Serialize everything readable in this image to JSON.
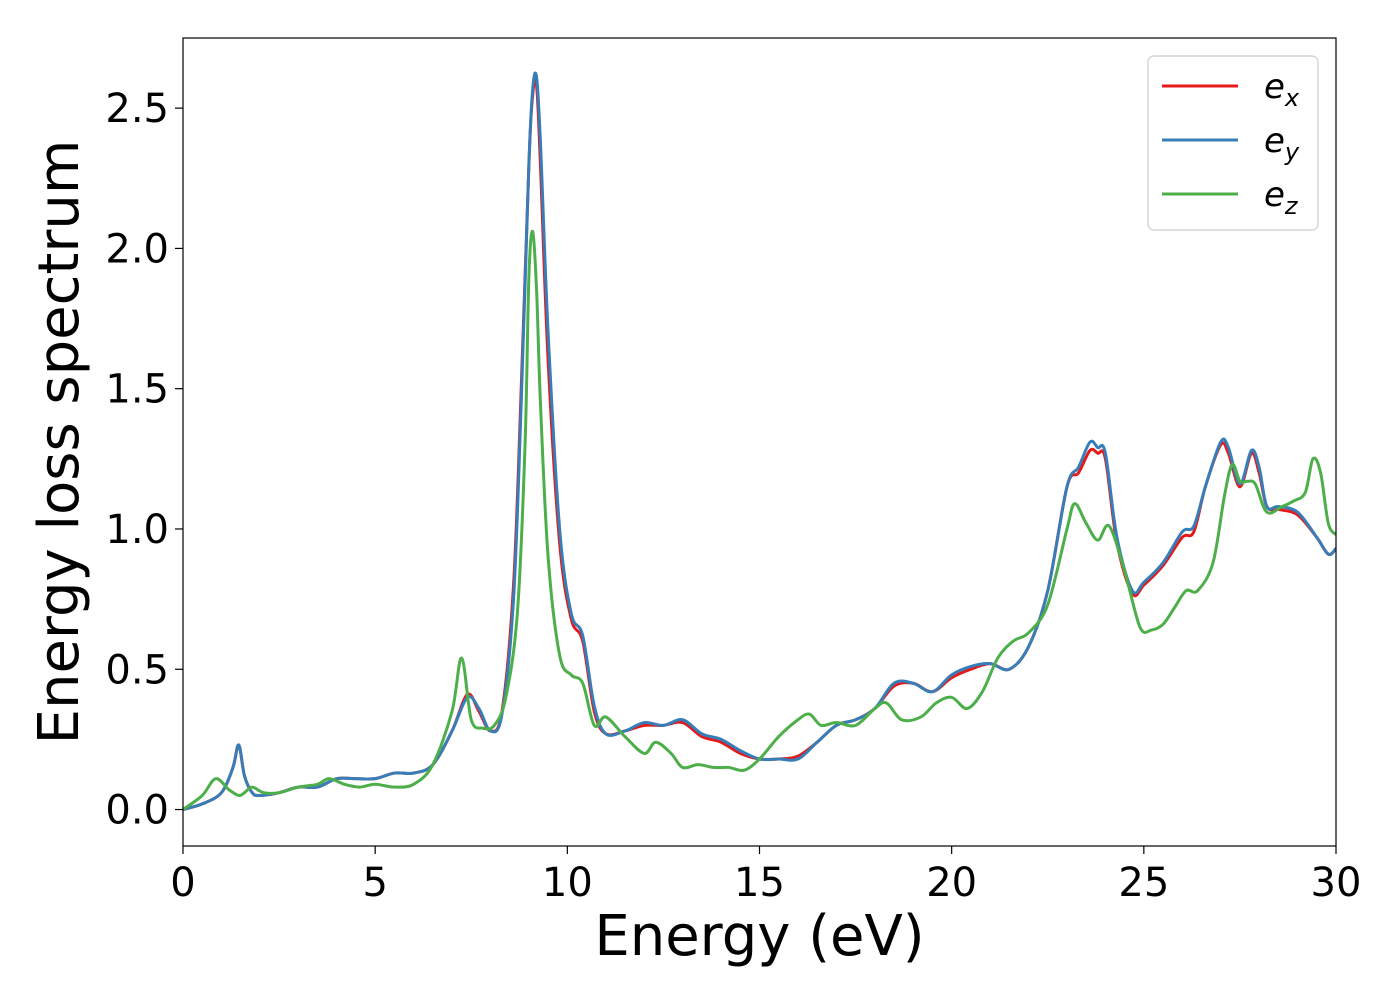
{
  "chart_data": {
    "type": "line",
    "xlabel": "Energy (eV)",
    "ylabel": "Energy loss spectrum",
    "xlim": [
      0,
      30
    ],
    "ylim": [
      -0.13,
      2.75
    ],
    "xticks": [
      0,
      5,
      10,
      15,
      20,
      25,
      30
    ],
    "xtick_labels": [
      "0",
      "5",
      "10",
      "15",
      "20",
      "25",
      "30"
    ],
    "yticks": [
      0.0,
      0.5,
      1.0,
      1.5,
      2.0,
      2.5
    ],
    "ytick_labels": [
      "0.0",
      "0.5",
      "1.0",
      "1.5",
      "2.0",
      "2.5"
    ],
    "grid": false,
    "legend_position": "top-right",
    "series": [
      {
        "name": "e",
        "subscript": "x",
        "color": "#e41a1c",
        "x": [
          0,
          0.5,
          1.0,
          1.3,
          1.45,
          1.6,
          1.8,
          2.0,
          2.5,
          3.0,
          3.5,
          4.0,
          4.5,
          5.0,
          5.5,
          6.0,
          6.5,
          7.0,
          7.4,
          7.7,
          8.0,
          8.3,
          8.6,
          8.8,
          9.0,
          9.1,
          9.2,
          9.3,
          9.5,
          9.8,
          10.1,
          10.4,
          10.7,
          11.0,
          11.5,
          12.0,
          12.5,
          13.0,
          13.5,
          14.0,
          14.5,
          15.0,
          15.5,
          16.0,
          16.5,
          17.0,
          17.5,
          18.0,
          18.5,
          19.0,
          19.5,
          20.0,
          20.5,
          21.0,
          21.5,
          22.0,
          22.5,
          23.0,
          23.3,
          23.6,
          23.8,
          24.0,
          24.3,
          24.7,
          25.0,
          25.5,
          26.0,
          26.3,
          26.6,
          27.0,
          27.2,
          27.5,
          27.8,
          28.0,
          28.2,
          28.5,
          29.0,
          29.5,
          29.8,
          30.0
        ],
        "y": [
          0.0,
          0.02,
          0.06,
          0.15,
          0.23,
          0.12,
          0.06,
          0.05,
          0.06,
          0.08,
          0.08,
          0.11,
          0.11,
          0.11,
          0.13,
          0.13,
          0.16,
          0.28,
          0.41,
          0.35,
          0.28,
          0.35,
          0.8,
          1.5,
          2.3,
          2.55,
          2.58,
          2.3,
          1.6,
          0.95,
          0.68,
          0.6,
          0.35,
          0.27,
          0.28,
          0.3,
          0.3,
          0.31,
          0.26,
          0.24,
          0.2,
          0.18,
          0.18,
          0.19,
          0.24,
          0.3,
          0.32,
          0.36,
          0.44,
          0.45,
          0.42,
          0.47,
          0.5,
          0.52,
          0.5,
          0.58,
          0.78,
          1.15,
          1.2,
          1.28,
          1.27,
          1.25,
          0.95,
          0.77,
          0.8,
          0.87,
          0.97,
          0.99,
          1.15,
          1.3,
          1.27,
          1.15,
          1.27,
          1.2,
          1.08,
          1.07,
          1.05,
          0.97,
          0.91,
          0.93
        ]
      },
      {
        "name": "e",
        "subscript": "y",
        "color": "#377eb8",
        "x": [
          0,
          0.5,
          1.0,
          1.3,
          1.45,
          1.6,
          1.8,
          2.0,
          2.5,
          3.0,
          3.5,
          4.0,
          4.5,
          5.0,
          5.5,
          6.0,
          6.5,
          7.0,
          7.4,
          7.7,
          8.0,
          8.3,
          8.6,
          8.8,
          9.0,
          9.1,
          9.2,
          9.3,
          9.5,
          9.8,
          10.1,
          10.4,
          10.7,
          11.0,
          11.5,
          12.0,
          12.5,
          13.0,
          13.5,
          14.0,
          14.5,
          15.0,
          15.5,
          16.0,
          16.5,
          17.0,
          17.5,
          18.0,
          18.5,
          19.0,
          19.5,
          20.0,
          20.5,
          21.0,
          21.5,
          22.0,
          22.5,
          23.0,
          23.3,
          23.6,
          23.8,
          24.0,
          24.3,
          24.7,
          25.0,
          25.5,
          26.0,
          26.3,
          26.6,
          27.0,
          27.2,
          27.5,
          27.8,
          28.0,
          28.2,
          28.5,
          29.0,
          29.5,
          29.8,
          30.0
        ],
        "y": [
          0.0,
          0.02,
          0.06,
          0.15,
          0.23,
          0.12,
          0.06,
          0.05,
          0.06,
          0.08,
          0.08,
          0.11,
          0.11,
          0.11,
          0.13,
          0.13,
          0.16,
          0.28,
          0.4,
          0.36,
          0.28,
          0.34,
          0.75,
          1.45,
          2.3,
          2.57,
          2.61,
          2.38,
          1.7,
          1.0,
          0.7,
          0.62,
          0.37,
          0.27,
          0.28,
          0.31,
          0.3,
          0.32,
          0.27,
          0.25,
          0.21,
          0.18,
          0.18,
          0.18,
          0.24,
          0.3,
          0.32,
          0.36,
          0.45,
          0.45,
          0.42,
          0.48,
          0.51,
          0.52,
          0.5,
          0.58,
          0.78,
          1.15,
          1.22,
          1.31,
          1.29,
          1.27,
          0.97,
          0.78,
          0.81,
          0.88,
          0.99,
          1.01,
          1.15,
          1.31,
          1.29,
          1.16,
          1.28,
          1.22,
          1.08,
          1.08,
          1.06,
          0.97,
          0.91,
          0.93
        ]
      },
      {
        "name": "e",
        "subscript": "z",
        "color": "#4daf4a",
        "x": [
          0,
          0.5,
          0.85,
          1.2,
          1.45,
          1.6,
          1.8,
          2.1,
          2.5,
          3.0,
          3.5,
          3.8,
          4.2,
          4.6,
          5.0,
          5.5,
          6.0,
          6.5,
          7.0,
          7.25,
          7.5,
          7.8,
          8.1,
          8.4,
          8.7,
          8.9,
          9.0,
          9.1,
          9.2,
          9.3,
          9.5,
          9.8,
          10.1,
          10.4,
          10.7,
          11.0,
          11.5,
          12.0,
          12.3,
          12.7,
          13.0,
          13.4,
          13.8,
          14.2,
          14.6,
          15.0,
          15.5,
          16.0,
          16.3,
          16.6,
          17.0,
          17.5,
          18.0,
          18.3,
          18.7,
          19.2,
          19.6,
          20.0,
          20.4,
          20.8,
          21.2,
          21.6,
          22.0,
          22.5,
          23.0,
          23.2,
          23.5,
          23.8,
          24.1,
          24.5,
          24.9,
          25.2,
          25.5,
          25.8,
          26.1,
          26.4,
          26.8,
          27.1,
          27.3,
          27.5,
          27.7,
          27.9,
          28.2,
          28.6,
          28.9,
          29.2,
          29.4,
          29.6,
          29.8,
          30.0
        ],
        "y": [
          0.0,
          0.05,
          0.11,
          0.07,
          0.05,
          0.06,
          0.08,
          0.06,
          0.06,
          0.08,
          0.09,
          0.11,
          0.09,
          0.08,
          0.09,
          0.08,
          0.09,
          0.16,
          0.35,
          0.54,
          0.32,
          0.29,
          0.3,
          0.4,
          0.7,
          1.3,
          1.9,
          2.06,
          1.85,
          1.45,
          0.9,
          0.55,
          0.48,
          0.45,
          0.3,
          0.33,
          0.26,
          0.2,
          0.24,
          0.2,
          0.15,
          0.16,
          0.15,
          0.15,
          0.14,
          0.18,
          0.26,
          0.32,
          0.34,
          0.3,
          0.31,
          0.3,
          0.36,
          0.38,
          0.32,
          0.33,
          0.38,
          0.4,
          0.36,
          0.42,
          0.54,
          0.6,
          0.63,
          0.73,
          1.0,
          1.09,
          1.02,
          0.96,
          1.01,
          0.85,
          0.65,
          0.64,
          0.66,
          0.72,
          0.78,
          0.78,
          0.88,
          1.12,
          1.23,
          1.17,
          1.17,
          1.16,
          1.06,
          1.08,
          1.1,
          1.13,
          1.25,
          1.2,
          1.02,
          0.98
        ]
      }
    ]
  }
}
